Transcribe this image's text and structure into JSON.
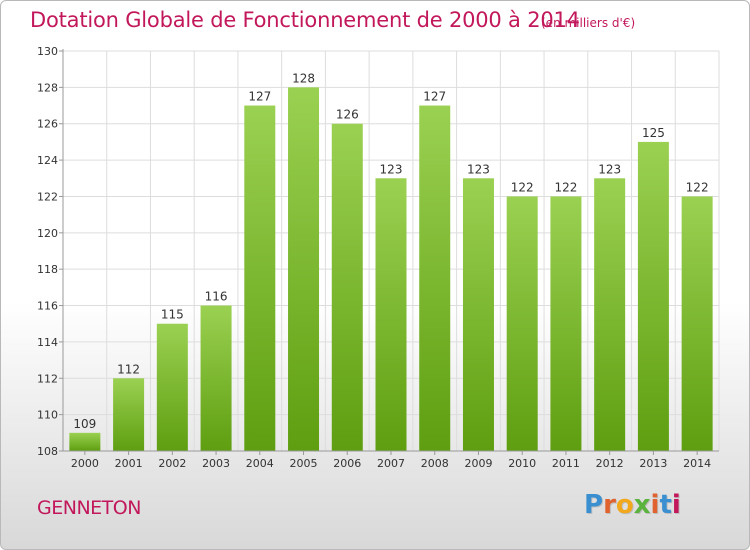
{
  "header": {
    "title": "Dotation Globale de Fonctionnement de 2000 à 2014",
    "subtitle": "(en milliers d'€)"
  },
  "footer": {
    "city": "GENNETON",
    "logo": "Proxiti",
    "logo_colors": [
      "#3a8fd0",
      "#e0622f",
      "#f2a81d",
      "#5ab33c",
      "#e0622f",
      "#3a8fd0",
      "#c2185b"
    ]
  },
  "colors": {
    "accent": "#c2185b",
    "bar_top": "#9bd152",
    "bar_bottom": "#5e9e10",
    "grid": "#dddddd",
    "axis": "#999999"
  },
  "chart_data": {
    "type": "bar",
    "categories": [
      "2000",
      "2001",
      "2002",
      "2003",
      "2004",
      "2005",
      "2006",
      "2007",
      "2008",
      "2009",
      "2010",
      "2011",
      "2012",
      "2013",
      "2014"
    ],
    "values": [
      109,
      112,
      115,
      116,
      127,
      128,
      126,
      123,
      127,
      123,
      122,
      122,
      123,
      125,
      122
    ],
    "title": "Dotation Globale de Fonctionnement de 2000 à 2014",
    "subtitle": "(en milliers d'€)",
    "ylim": [
      108,
      130
    ],
    "yticks": [
      108,
      110,
      112,
      114,
      116,
      118,
      120,
      122,
      124,
      126,
      128,
      130
    ],
    "grid": true
  }
}
